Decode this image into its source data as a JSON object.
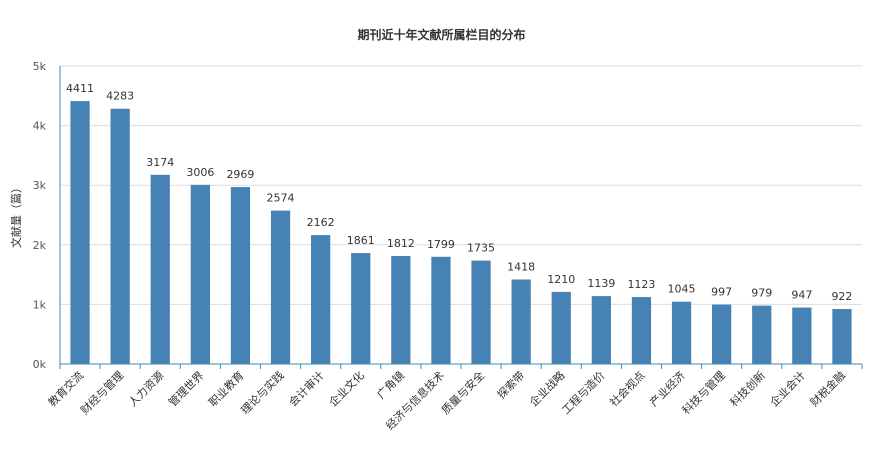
{
  "chart_data": {
    "type": "bar",
    "title": "期刊近十年文献所属栏目的分布",
    "xlabel": "",
    "ylabel": "文献量（篇）",
    "categories": [
      "教育交流",
      "财经与管理",
      "人力资源",
      "管理世界",
      "职业教育",
      "理论与实践",
      "会计审计",
      "企业文化",
      "广角镜",
      "经济与信息技术",
      "质量与安全",
      "探索带",
      "企业战略",
      "工程与造价",
      "社会视点",
      "产业经济",
      "科技与管理",
      "科技创新",
      "企业会计",
      "财税金融"
    ],
    "values": [
      4411,
      4283,
      3174,
      3006,
      2969,
      2574,
      2162,
      1861,
      1812,
      1799,
      1735,
      1418,
      1210,
      1139,
      1123,
      1045,
      997,
      979,
      947,
      922
    ],
    "ylim": [
      0,
      5000
    ],
    "yticks": [
      0,
      1000,
      2000,
      3000,
      4000,
      5000
    ],
    "ytick_labels": [
      "0k",
      "1k",
      "2k",
      "3k",
      "4k",
      "5k"
    ],
    "grid": true,
    "bar_color": "#4682b4",
    "axis_color": "#3a8fb7",
    "grid_color": "#dddddd"
  }
}
